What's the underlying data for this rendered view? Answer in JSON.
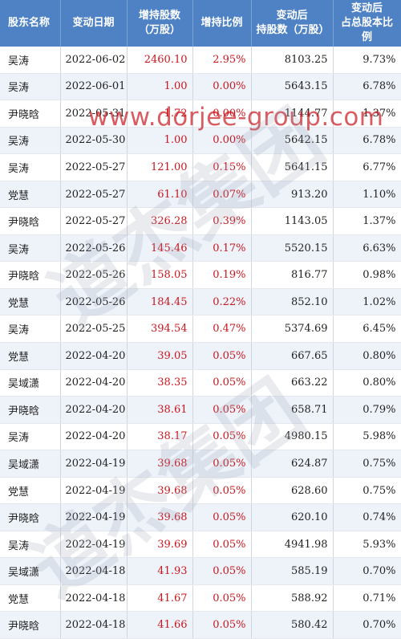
{
  "table": {
    "headers": [
      [
        "股东名称"
      ],
      [
        "变动日期"
      ],
      [
        "增持股数",
        "（万股）"
      ],
      [
        "增持比例"
      ],
      [
        "变动后",
        "持股数（万股）"
      ],
      [
        "变动后",
        "占总股本比例"
      ]
    ],
    "rows": [
      [
        "吴涛",
        "2022-06-02",
        "2460.10",
        "2.95%",
        "8103.25",
        "9.73%"
      ],
      [
        "吴涛",
        "2022-06-01",
        "1.00",
        "0.00%",
        "5643.15",
        "6.78%"
      ],
      [
        "尹晓晗",
        "2022-05-31",
        "1.72",
        "0.00%",
        "1144.77",
        "1.37%"
      ],
      [
        "吴涛",
        "2022-05-30",
        "1.00",
        "0.00%",
        "5642.15",
        "6.78%"
      ],
      [
        "吴涛",
        "2022-05-27",
        "121.00",
        "0.15%",
        "5641.15",
        "6.77%"
      ],
      [
        "党慧",
        "2022-05-27",
        "61.10",
        "0.07%",
        "913.20",
        "1.10%"
      ],
      [
        "尹晓晗",
        "2022-05-27",
        "326.28",
        "0.39%",
        "1143.05",
        "1.37%"
      ],
      [
        "吴涛",
        "2022-05-26",
        "145.46",
        "0.17%",
        "5520.15",
        "6.63%"
      ],
      [
        "尹晓晗",
        "2022-05-26",
        "158.05",
        "0.19%",
        "816.77",
        "0.98%"
      ],
      [
        "党慧",
        "2022-05-26",
        "184.45",
        "0.22%",
        "852.10",
        "1.02%"
      ],
      [
        "吴涛",
        "2022-05-25",
        "394.54",
        "0.47%",
        "5374.69",
        "6.45%"
      ],
      [
        "党慧",
        "2022-04-20",
        "39.05",
        "0.05%",
        "667.65",
        "0.80%"
      ],
      [
        "吴域潇",
        "2022-04-20",
        "38.35",
        "0.05%",
        "663.22",
        "0.80%"
      ],
      [
        "尹晓晗",
        "2022-04-20",
        "38.61",
        "0.05%",
        "658.71",
        "0.79%"
      ],
      [
        "吴涛",
        "2022-04-20",
        "38.17",
        "0.05%",
        "4980.15",
        "5.98%"
      ],
      [
        "吴域潇",
        "2022-04-19",
        "39.68",
        "0.05%",
        "624.87",
        "0.75%"
      ],
      [
        "党慧",
        "2022-04-19",
        "39.68",
        "0.05%",
        "628.60",
        "0.75%"
      ],
      [
        "尹晓晗",
        "2022-04-19",
        "39.68",
        "0.05%",
        "620.10",
        "0.74%"
      ],
      [
        "吴涛",
        "2022-04-19",
        "39.69",
        "0.05%",
        "4941.98",
        "5.93%"
      ],
      [
        "吴域潇",
        "2022-04-18",
        "41.93",
        "0.05%",
        "585.19",
        "0.70%"
      ],
      [
        "党慧",
        "2022-04-18",
        "41.67",
        "0.05%",
        "588.92",
        "0.71%"
      ],
      [
        "尹晓晗",
        "2022-04-18",
        "41.66",
        "0.05%",
        "580.42",
        "0.70%"
      ]
    ]
  },
  "watermark": {
    "url_text": "www.dorjee-group.com",
    "brand_text": "道杰集团",
    "color": "#c8171e"
  },
  "colors": {
    "header_bg": "#4f82c4",
    "row_alt": "#eef3fa",
    "increase_red": "#c8171e"
  }
}
